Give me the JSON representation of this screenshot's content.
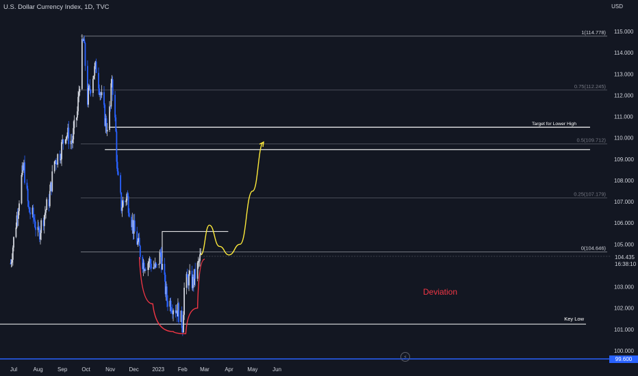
{
  "header": {
    "title": "U.S. Dollar Currency Index, 1D, TVC",
    "currency": "USD"
  },
  "price_tag": {
    "price": "104.435",
    "countdown": "16:38:10"
  },
  "blue_level": "99.600",
  "annotations": {
    "deviation": "Deviation",
    "target": "Target for Lower High",
    "key_low": "Key Low",
    "fib": [
      "1(114.778)",
      "0.75(112.245)",
      "0.5(109.712)",
      "0.25(107.179)",
      "0(104.646)"
    ]
  },
  "colors": {
    "background": "#131722",
    "candle_up": "#d1d4dc",
    "candle_down": "#2962ff",
    "deviation": "#f23645",
    "projection": "#ffeb3b",
    "blue_line": "#2962ff"
  },
  "chart_data": {
    "type": "candlestick",
    "title": "U.S. Dollar Currency Index, 1D, TVC",
    "y_axis": {
      "ticks": [
        100,
        101,
        102,
        103,
        104,
        105,
        106,
        107,
        108,
        109,
        110,
        111,
        112,
        113,
        114,
        115
      ],
      "range": [
        99.6,
        115.6
      ],
      "position": "right"
    },
    "x_axis": {
      "ticks": [
        "Jul",
        "Aug",
        "Sep",
        "Oct",
        "Nov",
        "Dec",
        "2023",
        "Feb",
        "Mar",
        "Apr",
        "May",
        "Jun"
      ]
    },
    "fib_levels": [
      {
        "ratio": "1",
        "value": 114.778
      },
      {
        "ratio": "0.75",
        "value": 112.245
      },
      {
        "ratio": "0.5",
        "value": 109.712
      },
      {
        "ratio": "0.25",
        "value": 107.179
      },
      {
        "ratio": "0",
        "value": 104.646
      }
    ],
    "key_low": 101.25,
    "target_zone": [
      109.45,
      110.5
    ],
    "range_high_box": 105.6,
    "last_price": 104.435,
    "close_path": [
      [
        "2022-06-27",
        104.1
      ],
      [
        "2022-07-05",
        106.3
      ],
      [
        "2022-07-11",
        108.1
      ],
      [
        "2022-07-14",
        108.6
      ],
      [
        "2022-07-20",
        106.6
      ],
      [
        "2022-07-27",
        106.2
      ],
      [
        "2022-08-01",
        105.4
      ],
      [
        "2022-08-08",
        106.3
      ],
      [
        "2022-08-15",
        107.1
      ],
      [
        "2022-08-22",
        108.9
      ],
      [
        "2022-08-29",
        109.3
      ],
      [
        "2022-09-05",
        110.3
      ],
      [
        "2022-09-13",
        109.8
      ],
      [
        "2022-09-20",
        111.2
      ],
      [
        "2022-09-26",
        114.2
      ],
      [
        "2022-09-28",
        114.6
      ],
      [
        "2022-10-03",
        111.8
      ],
      [
        "2022-10-10",
        113.0
      ],
      [
        "2022-10-14",
        113.3
      ],
      [
        "2022-10-21",
        111.8
      ],
      [
        "2022-10-27",
        110.5
      ],
      [
        "2022-11-01",
        111.4
      ],
      [
        "2022-11-03",
        112.9
      ],
      [
        "2022-11-08",
        110.2
      ],
      [
        "2022-11-10",
        108.2
      ],
      [
        "2022-11-15",
        106.8
      ],
      [
        "2022-11-22",
        107.3
      ],
      [
        "2022-11-30",
        105.8
      ],
      [
        "2022-12-07",
        104.9
      ],
      [
        "2022-12-13",
        104.1
      ],
      [
        "2022-12-20",
        104.2
      ],
      [
        "2022-12-30",
        103.8
      ],
      [
        "2023-01-04",
        104.6
      ],
      [
        "2023-01-06",
        103.9
      ],
      [
        "2023-01-12",
        102.4
      ],
      [
        "2023-01-18",
        102.2
      ],
      [
        "2023-01-26",
        101.9
      ],
      [
        "2023-02-01",
        101.2
      ],
      [
        "2023-02-03",
        102.9
      ],
      [
        "2023-02-08",
        103.4
      ],
      [
        "2023-02-14",
        103.2
      ],
      [
        "2023-02-20",
        103.9
      ],
      [
        "2023-02-24",
        104.435
      ]
    ],
    "projection": [
      [
        "2023-02-24",
        104.5
      ],
      [
        "2023-03-07",
        105.9
      ],
      [
        "2023-03-20",
        104.9
      ],
      [
        "2023-04-01",
        104.5
      ],
      [
        "2023-04-15",
        105.0
      ],
      [
        "2023-05-01",
        107.5
      ],
      [
        "2023-05-15",
        109.8
      ]
    ],
    "deviation_curve": [
      [
        "2022-12-08",
        104.4
      ],
      [
        "2022-12-25",
        102.2
      ],
      [
        "2023-01-20",
        100.9
      ],
      [
        "2023-02-05",
        100.8
      ],
      [
        "2023-02-20",
        102.0
      ],
      [
        "2023-03-01",
        104.3
      ]
    ]
  }
}
